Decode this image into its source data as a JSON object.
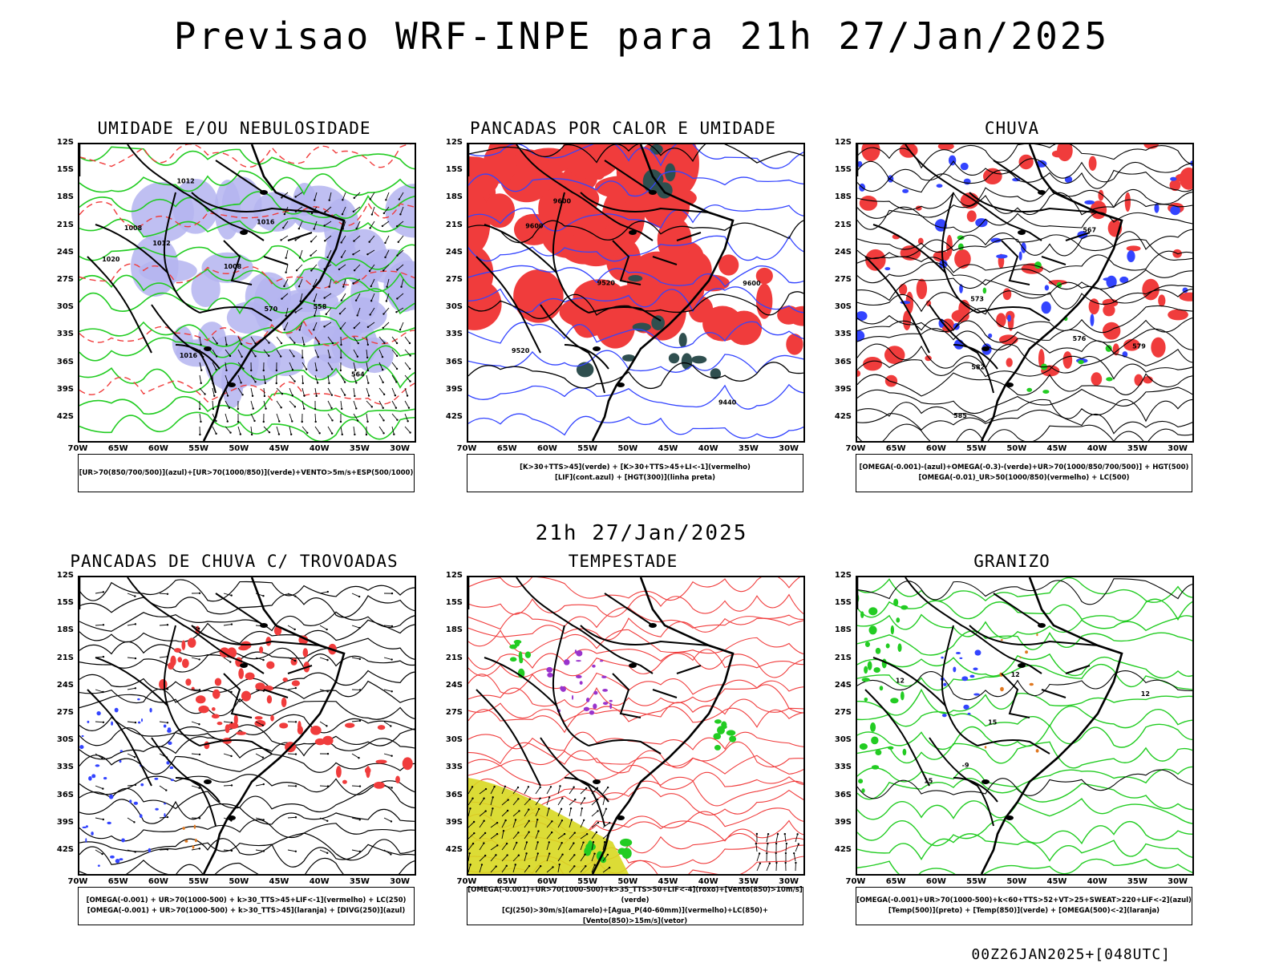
{
  "title": "Previsao WRF-INPE  para 21h 27/Jan/2025",
  "mid_title": "21h 27/Jan/2025",
  "footer": "00Z26JAN2025+[048UTC]",
  "lat_ticks": [
    "12S",
    "15S",
    "18S",
    "21S",
    "24S",
    "27S",
    "30S",
    "33S",
    "36S",
    "39S",
    "42S"
  ],
  "lon_ticks": [
    "70W",
    "65W",
    "60W",
    "55W",
    "50W",
    "45W",
    "40W",
    "35W",
    "30W"
  ],
  "colors": {
    "red": "#f03c3c",
    "green": "#22cc22",
    "blue": "#3344ff",
    "lavender": "#b4b4f0",
    "dark_teal": "#2f4f4f",
    "yellow": "#d8d820",
    "purple": "#9933cc",
    "orange": "#e07820"
  },
  "panels": [
    {
      "title": "UMIDADE E/OU NEBULOSIDADE",
      "legend": [
        "[UR>70(850/700/500)](azul)+[UR>70(1000/850)](verde)+VENTO>5m/s+ESP(500/1000)"
      ],
      "contour_labels": [
        "1012",
        "1008",
        "1008",
        "1012",
        "1016",
        "1016",
        "1020",
        "570",
        "564",
        "558"
      ]
    },
    {
      "title": "PANCADAS POR CALOR E UMIDADE",
      "legend": [
        "[K>30+TTS>45](verde) + [K>30+TTS>45+LI<-1](vermelho)",
        "[LIF](cont.azul) + [HGT(300)](linha preta)"
      ],
      "contour_labels": [
        "9600",
        "9600",
        "9520",
        "9440",
        "9520",
        "9600"
      ]
    },
    {
      "title": "CHUVA",
      "legend": [
        "[OMEGA(-0.001)-(azul)+OMEGA(-0.3)-(verde)+UR>70(1000/850/700/500)] + HGT(500)",
        "[OMEGA(-0.01)_UR>50(1000/850)(vermelho) + LC(500)"
      ],
      "contour_labels": [
        "585",
        "576",
        "573",
        "582",
        "579",
        "567"
      ]
    },
    {
      "title": "PANCADAS DE CHUVA C/ TROVOADAS",
      "legend": [
        "[OMEGA(-0.001) + UR>70(1000-500) + k>30_TTS>45+LIF<-1](vermelho) + LC(250)",
        "[OMEGA(-0.001) + UR>70(1000-500) + k>30_TTS>45](laranja) + [DIVG(250)](azul)"
      ],
      "contour_labels": []
    },
    {
      "title": "TEMPESTADE",
      "legend": [
        "[OMEGA(-0.001)+UR>70(1000-500)+k>35_TTS>50+LIF<-4](roxo)+[Vento(850)>10m/s](verde)",
        "[CJ(250)>30m/s](amarelo)+[Agua_P(40-60mm)](vermelho)+LC(850)+[Vento(850)>15m/s](vetor)"
      ],
      "contour_labels": []
    },
    {
      "title": "GRANIZO",
      "legend": [
        "[OMEGA(-0.001)+UR>70(1000-500)+k<60+TTS>52+VT>25+SWEAT>220+LIF<-2](azul)",
        "[Temp(500)](preto) + [Temp(850)](verde) + [OMEGA(500)<-2](laranja)"
      ],
      "contour_labels": [
        "15",
        "12",
        "15",
        "12",
        "-9",
        "12"
      ]
    }
  ]
}
